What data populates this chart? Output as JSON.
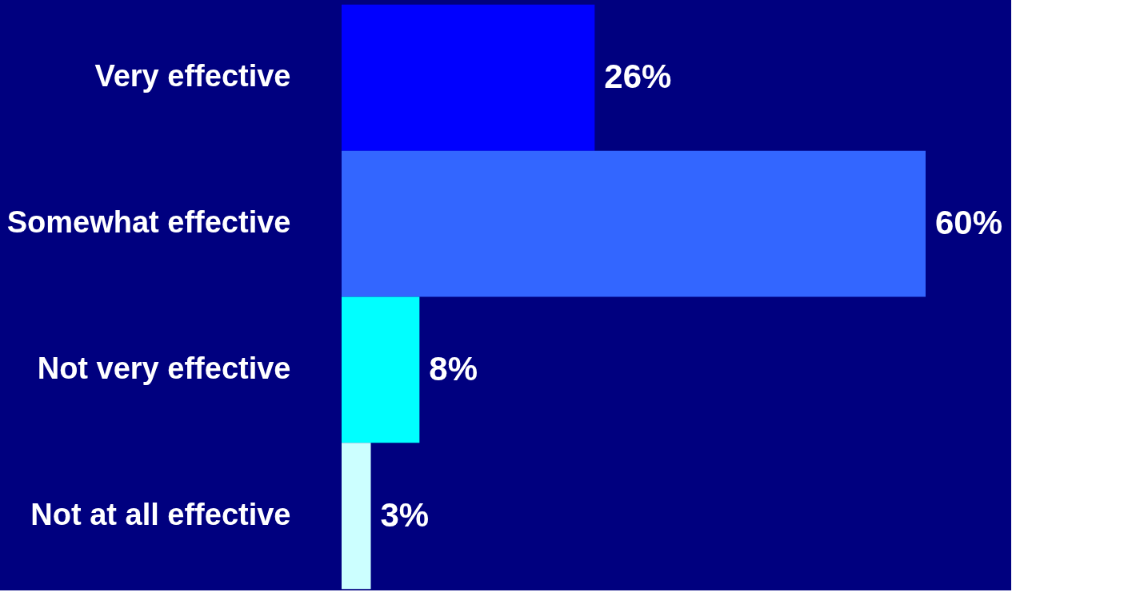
{
  "chart_data": {
    "type": "bar",
    "orientation": "horizontal",
    "categories": [
      "Very effective",
      "Somewhat effective",
      "Not very effective",
      "Not at all effective"
    ],
    "values": [
      26,
      60,
      8,
      3
    ],
    "value_labels": [
      "26%",
      "60%",
      "8%",
      "3%"
    ],
    "colors": [
      "#0000ff",
      "#3366ff",
      "#00ffff",
      "#ccffff"
    ],
    "tick_labels": "y"
  }
}
